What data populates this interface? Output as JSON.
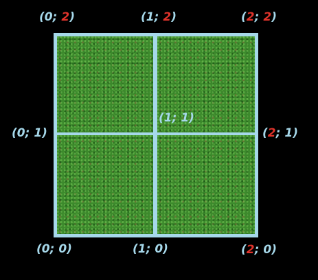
{
  "colors": {
    "background": "#000000",
    "grid_line": "#a6d8ea",
    "label": "#a6d8ea",
    "highlight": "#e0332b",
    "tile": "#3c8a2c"
  },
  "labels": {
    "p02": {
      "open": "(0; ",
      "hi": "2",
      "close": ")"
    },
    "p12": {
      "open": "(1; ",
      "hi": "2",
      "close": ")"
    },
    "p22": {
      "open": "(",
      "hi": "2",
      "hi2": "2",
      "mid": "; ",
      "close": ")"
    },
    "p01": {
      "text": "(0; 1)"
    },
    "p11": {
      "text": "(1; 1)"
    },
    "p21": {
      "open": "(",
      "hi": "2",
      "close": "; 1)"
    },
    "p00": {
      "text": "(0; 0)"
    },
    "p10": {
      "text": "(1; 0)"
    },
    "p20": {
      "open": "(",
      "hi": "2",
      "close": "; 0)"
    }
  }
}
